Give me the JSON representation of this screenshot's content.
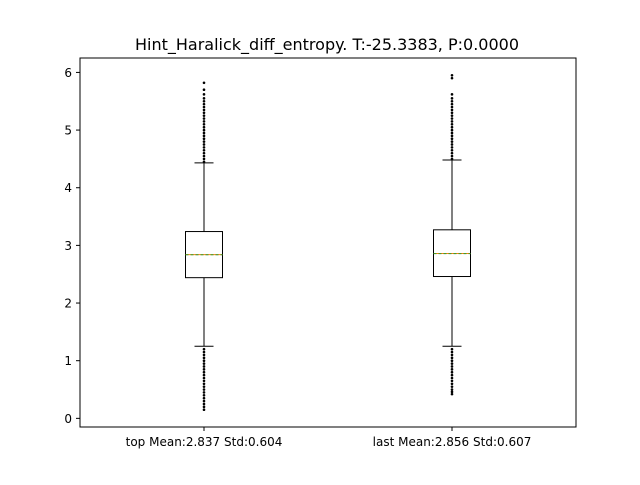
{
  "chart_data": {
    "type": "box",
    "title": "Hint_Haralick_diff_entropy. T:-25.3383, P:0.0000",
    "xlabel": "",
    "ylabel": "",
    "ylim": [
      -0.15,
      6.25
    ],
    "yticks": [
      0,
      1,
      2,
      3,
      4,
      5,
      6
    ],
    "grid": false,
    "median_color": "#ff7f0e",
    "mean_color": "#2ca02c",
    "boxes": [
      {
        "label": "top Mean:2.837 Std:0.604",
        "whisker_low": 1.25,
        "q1": 2.44,
        "median": 2.84,
        "mean": 2.837,
        "q3": 3.24,
        "whisker_high": 4.43,
        "outliers_low": [
          0.15,
          0.2,
          0.25,
          0.3,
          0.35,
          0.4,
          0.45,
          0.5,
          0.55,
          0.6,
          0.65,
          0.7,
          0.75,
          0.8,
          0.85,
          0.9,
          0.95,
          1.0,
          1.05,
          1.1,
          1.15,
          1.2
        ],
        "outliers_high": [
          4.45,
          4.5,
          4.55,
          4.6,
          4.65,
          4.7,
          4.75,
          4.8,
          4.85,
          4.9,
          4.95,
          5.0,
          5.05,
          5.1,
          5.15,
          5.2,
          5.25,
          5.3,
          5.35,
          5.4,
          5.45,
          5.5,
          5.55,
          5.62,
          5.7,
          5.82
        ]
      },
      {
        "label": "last Mean:2.856 Std:0.607",
        "whisker_low": 1.25,
        "q1": 2.46,
        "median": 2.86,
        "mean": 2.856,
        "q3": 3.27,
        "whisker_high": 4.48,
        "outliers_low": [
          0.42,
          0.46,
          0.5,
          0.55,
          0.6,
          0.65,
          0.7,
          0.75,
          0.8,
          0.85,
          0.9,
          0.95,
          1.0,
          1.05,
          1.1,
          1.15,
          1.2
        ],
        "outliers_high": [
          4.5,
          4.55,
          4.6,
          4.65,
          4.7,
          4.75,
          4.8,
          4.85,
          4.9,
          4.95,
          5.0,
          5.05,
          5.1,
          5.15,
          5.2,
          5.25,
          5.3,
          5.35,
          5.4,
          5.45,
          5.5,
          5.55,
          5.62,
          5.9,
          5.95
        ]
      }
    ]
  }
}
